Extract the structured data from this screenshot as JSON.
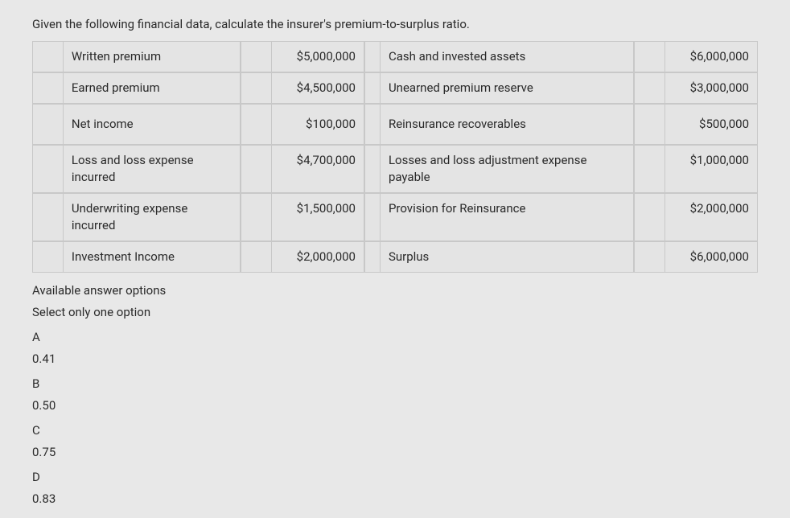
{
  "question_text": "Given the following financial data, calculate the insurer's premium-to-surplus ratio.",
  "rows": [
    {
      "label1": "Written premium",
      "value1": "$5,000,000",
      "label2": "Cash and invested assets",
      "value2": "$6,000,000"
    },
    {
      "label1": "Earned premium",
      "value1": "$4,500,000",
      "label2": "Unearned premium reserve",
      "value2": "$3,000,000"
    },
    {
      "label1": "Net income",
      "value1": "$100,000",
      "label2": "Reinsurance recoverables",
      "value2": "$500,000"
    },
    {
      "label1": "Loss and loss expense incurred",
      "value1": "$4,700,000",
      "label2": "Losses and loss adjustment expense payable",
      "value2": "$1,000,000"
    },
    {
      "label1": "Underwriting expense incurred",
      "value1": "$1,500,000",
      "label2": "Provision for Reinsurance",
      "value2": "$2,000,000"
    },
    {
      "label1": "Investment Income",
      "value1": "$2,000,000",
      "label2": "Surplus",
      "value2": "$6,000,000"
    }
  ],
  "options_header": "Available answer options",
  "options_sub": "Select only one option",
  "options": [
    {
      "letter": "A",
      "value": "0.41"
    },
    {
      "letter": "B",
      "value": "0.50"
    },
    {
      "letter": "C",
      "value": "0.75"
    },
    {
      "letter": "D",
      "value": "0.83"
    }
  ],
  "styling": {
    "background_color": "#e8e8e8",
    "cell_background": "#e4e4e4",
    "border_color": "#c8c8c8",
    "text_color": "#2a2a2a",
    "font_size_pt": 15
  }
}
